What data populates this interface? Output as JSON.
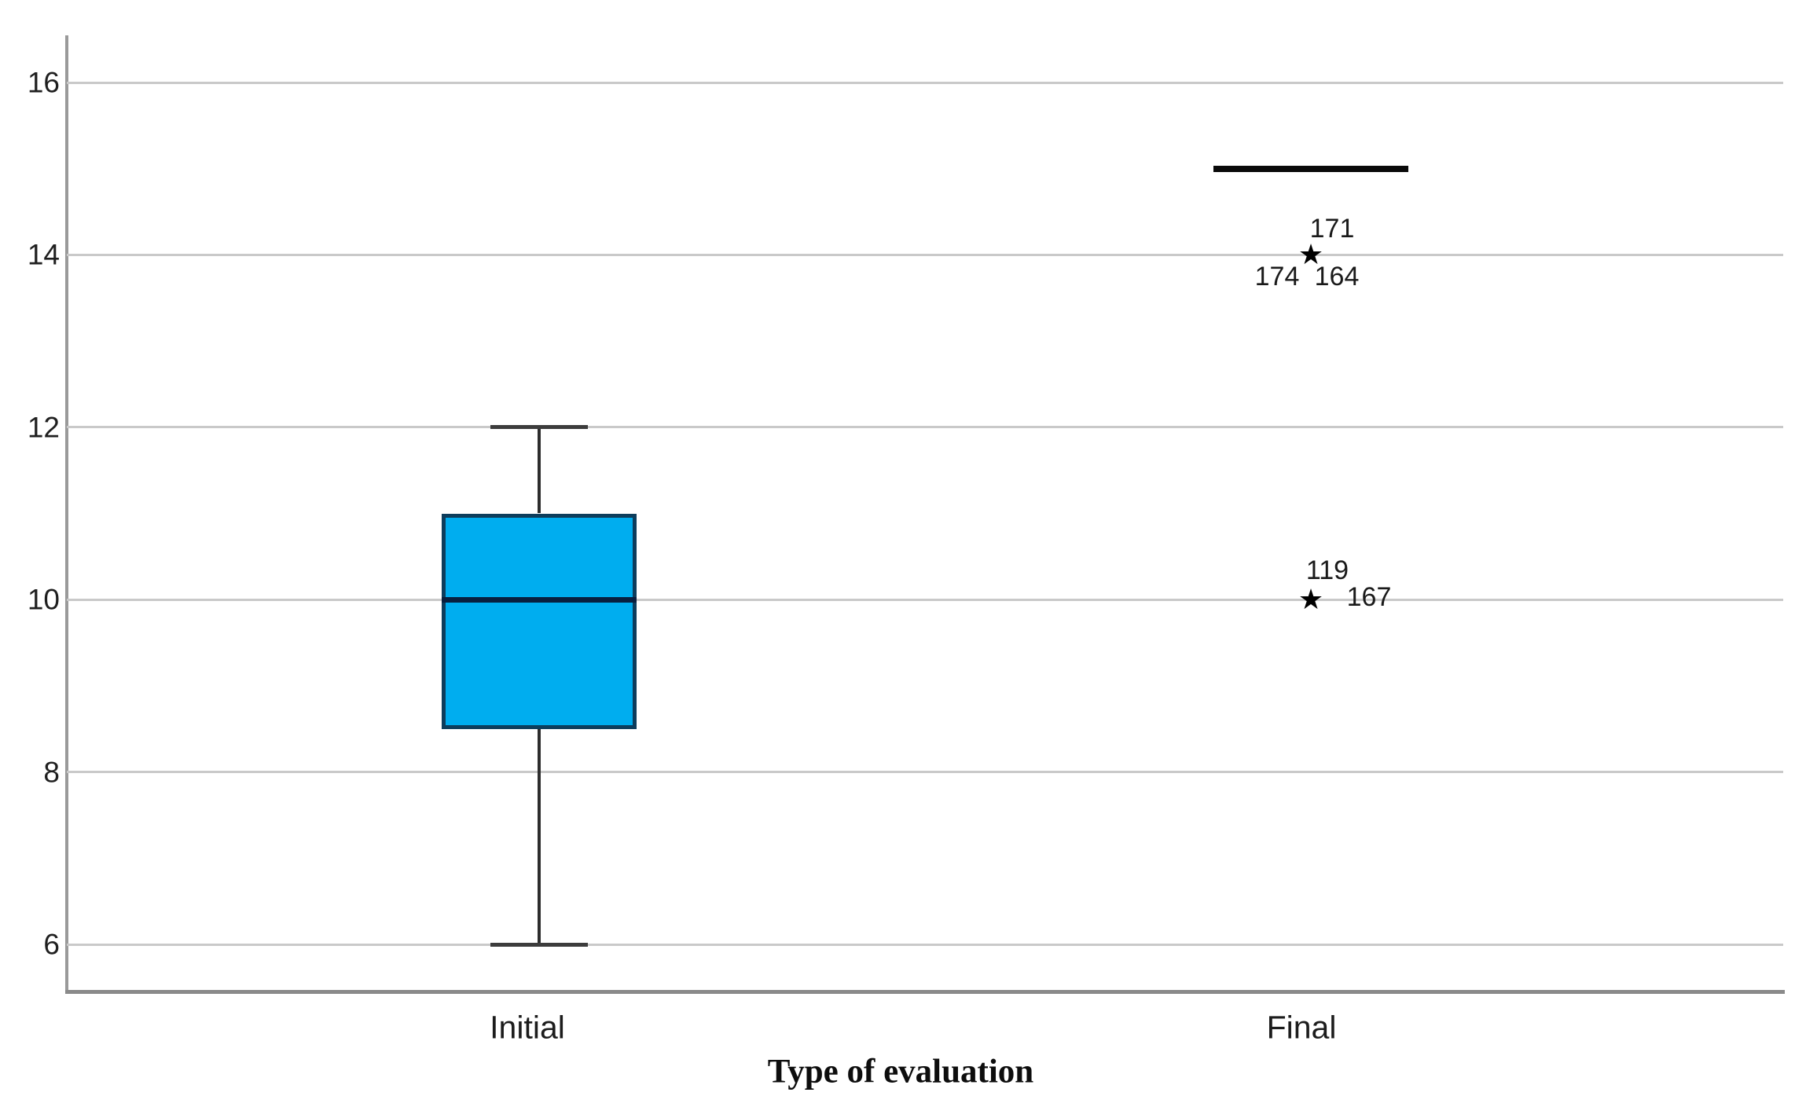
{
  "figure": {
    "background_color": "#ffffff"
  },
  "style": {
    "box_fill": "#00adef",
    "box_border": "#0d3d5c",
    "median_color": "#081f3f",
    "whisker_color": "#2d2d2d",
    "collapsed_box_color": "#0a0a0a",
    "gridline_color": "#c9c9c9",
    "axis_color": "#9a9a9a",
    "text_color": "#1f1f1f",
    "extreme_marker_glyph": "★",
    "extreme_marker_name": "star-outlier-marker"
  },
  "chart_data": {
    "type": "boxplot",
    "title": "",
    "xlabel": "Type of evaluation",
    "ylabel": "",
    "ylim": [
      5.45,
      16.55
    ],
    "yticks": [
      6,
      8,
      10,
      12,
      14,
      16
    ],
    "grid": "horizontal-only",
    "legend": "none",
    "categories": [
      "Initial",
      "Final"
    ],
    "series": [
      {
        "category": "Initial",
        "whisker_low": 6,
        "q1": 8.5,
        "median": 10,
        "q3": 11,
        "whisker_high": 12,
        "outliers": []
      },
      {
        "category": "Final",
        "whisker_low": 15,
        "q1": 15,
        "median": 15,
        "q3": 15,
        "whisker_high": 15,
        "collapsed_box_value": 15,
        "outliers": [
          {
            "value": 14,
            "marker": "extreme",
            "case_labels": [
              "171",
              "174",
              "164"
            ]
          },
          {
            "value": 10,
            "marker": "extreme",
            "case_labels": [
              "119",
              "167"
            ]
          }
        ]
      }
    ]
  }
}
